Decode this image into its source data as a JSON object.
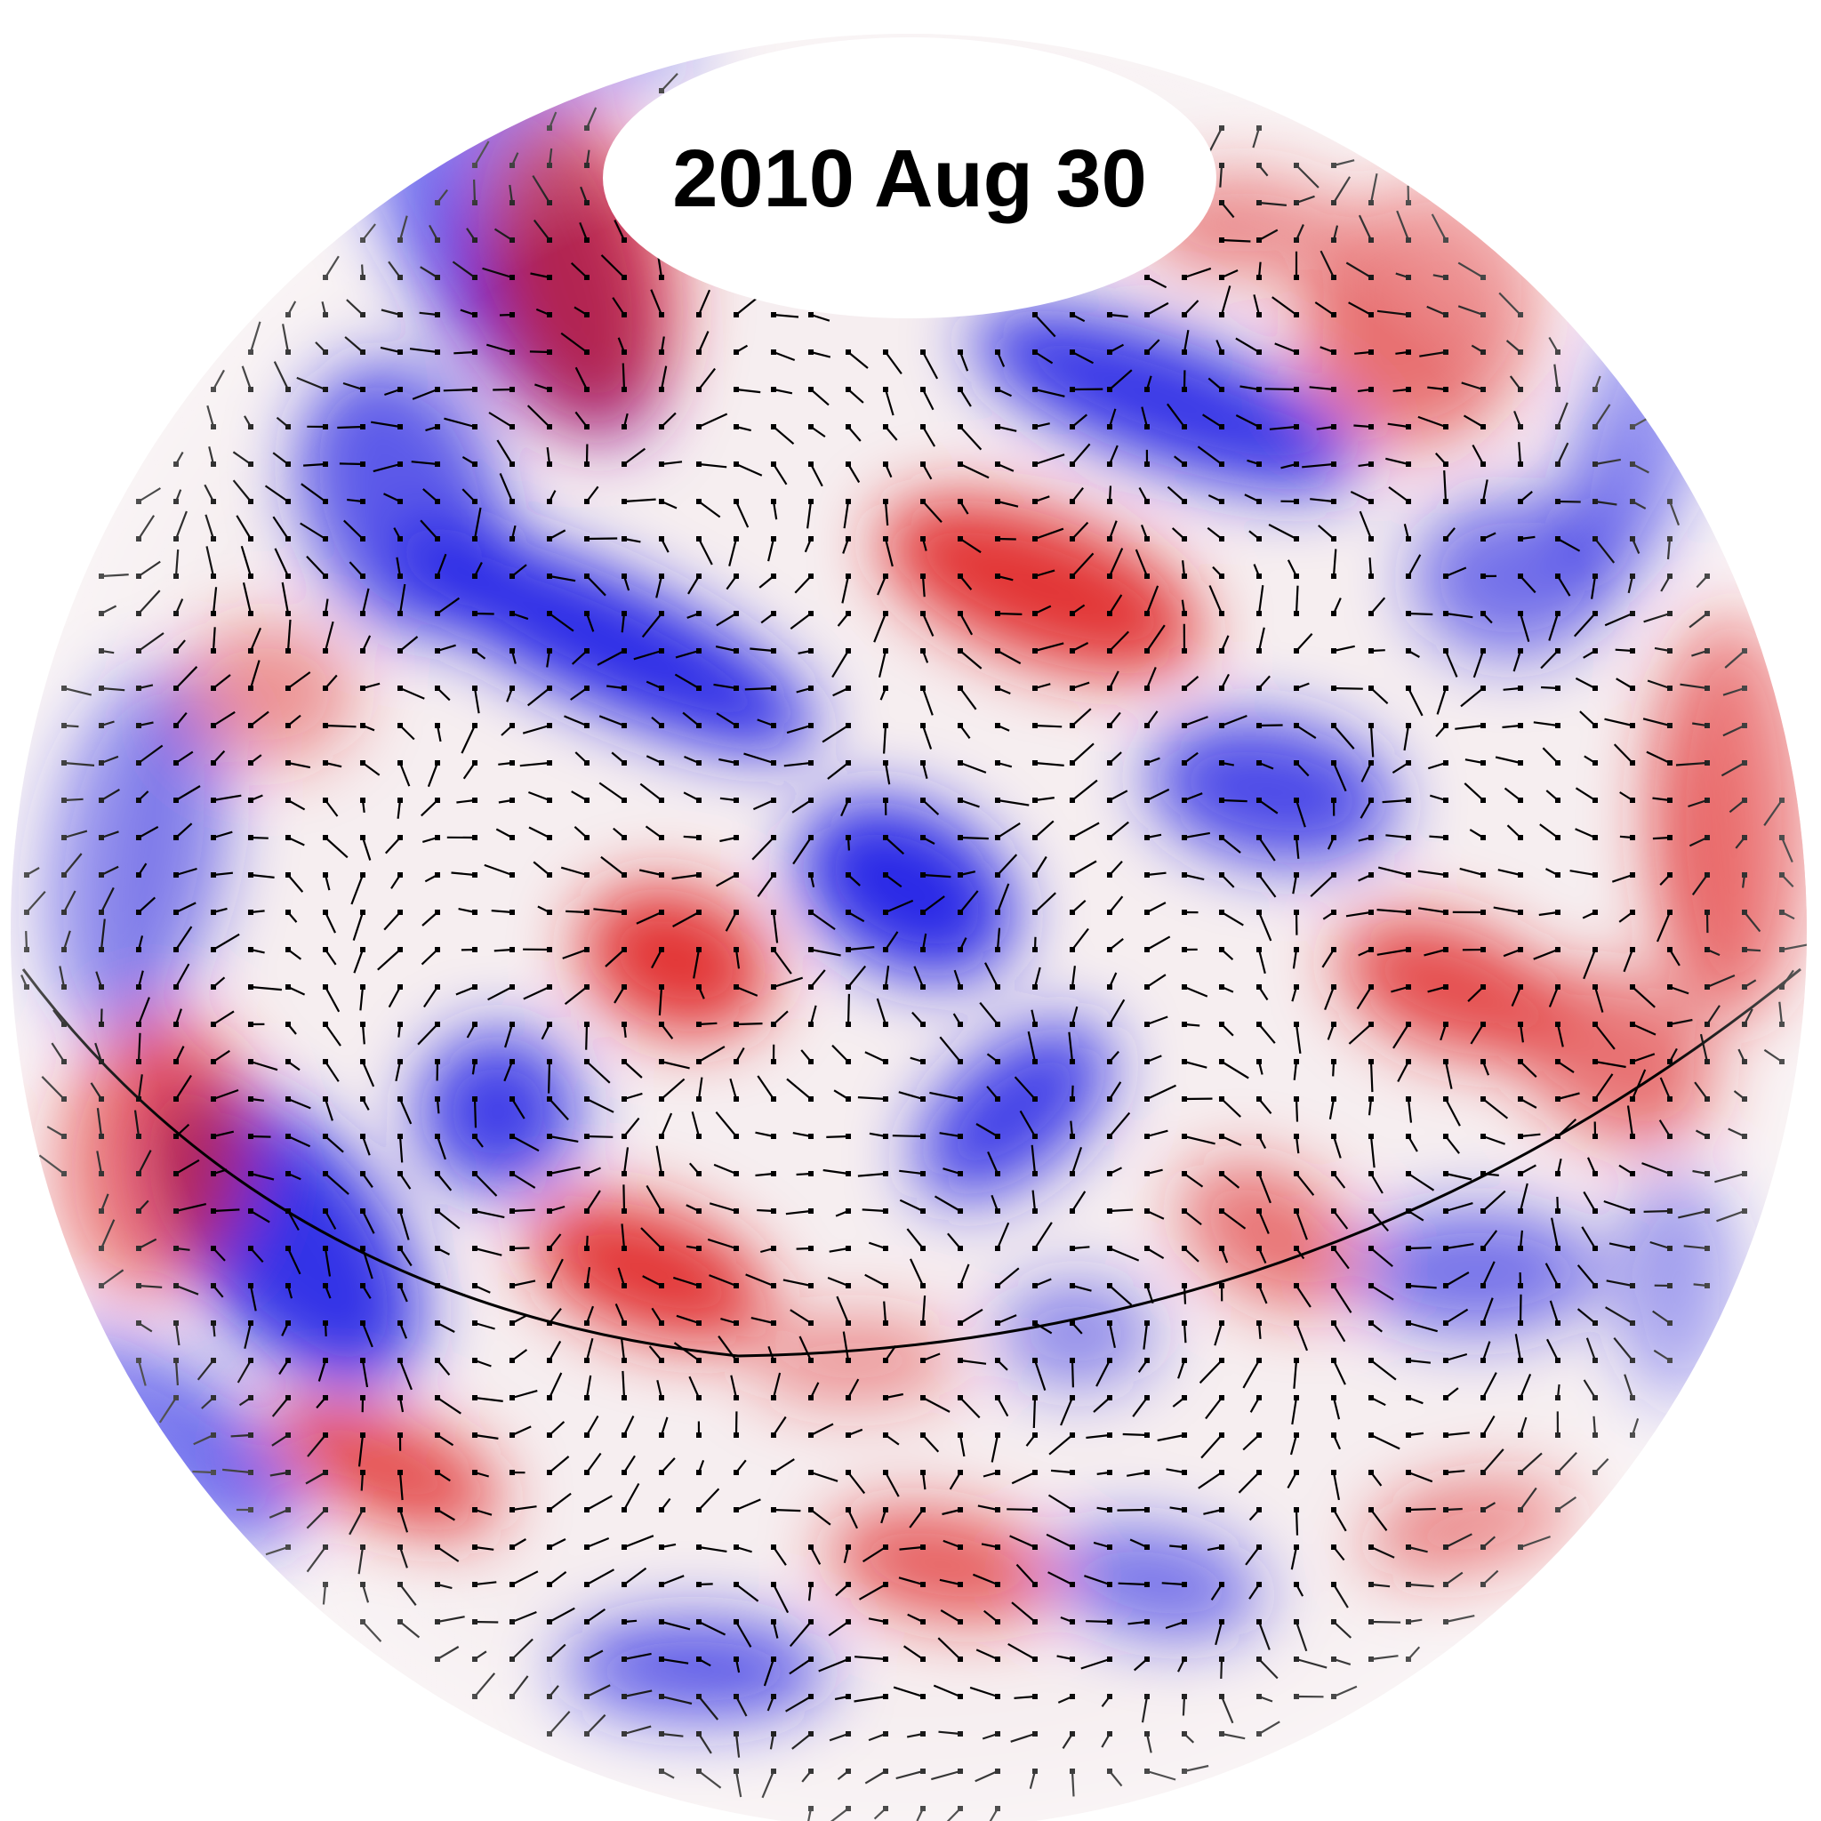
{
  "date_label": "2010 Aug 30",
  "colors": {
    "positive": "#e02020",
    "negative": "#1e1ee6",
    "neutral": "#ffffff",
    "vectors": "#000000",
    "equator": "#000000"
  },
  "icons": [
    "sphere-icon",
    "velocity-vector-icon"
  ]
}
